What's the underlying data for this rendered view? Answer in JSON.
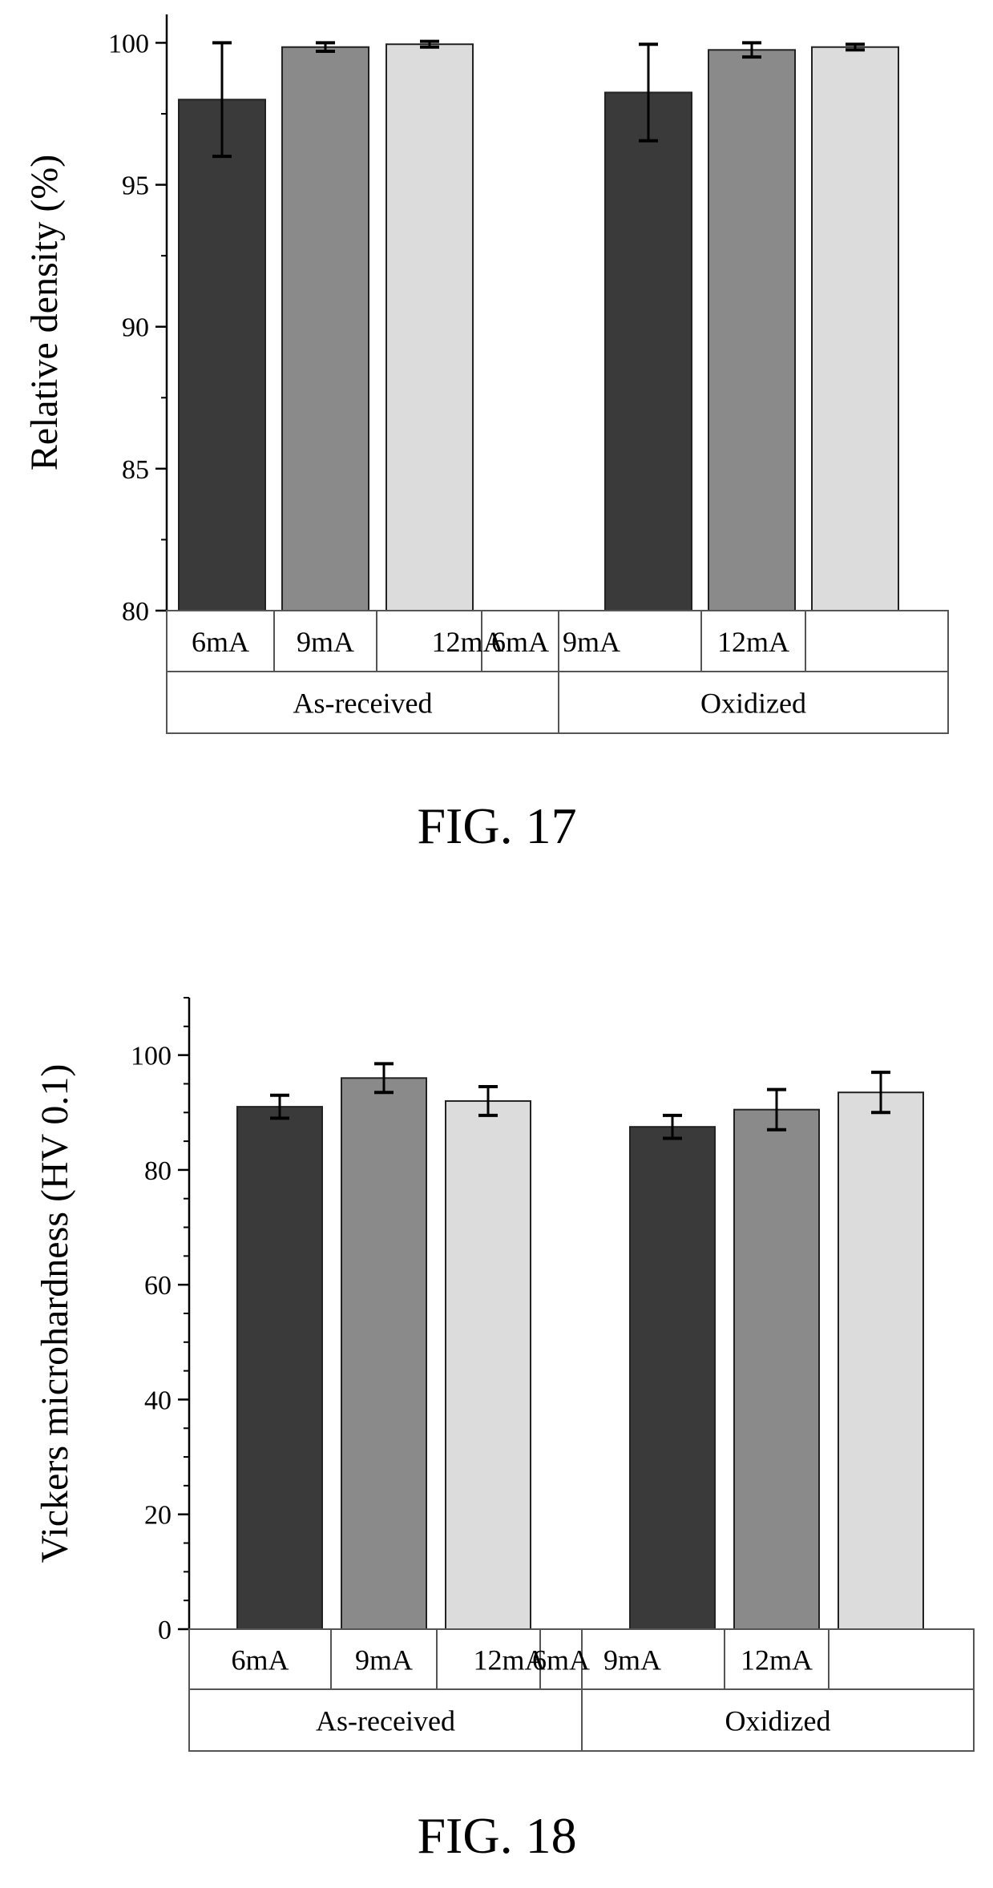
{
  "chart_data": [
    {
      "type": "bar",
      "figure_label": "FIG. 17",
      "ylabel": "Relative density (%)",
      "ylim": [
        80,
        101
      ],
      "yticks": [
        80,
        85,
        90,
        95,
        100
      ],
      "groups": [
        "As-received",
        "Oxidized"
      ],
      "categories": [
        "6mA",
        "9mA",
        "12mA"
      ],
      "series": [
        {
          "group": "As-received",
          "values": [
            98.0,
            99.85,
            99.95
          ],
          "errors": [
            2.0,
            0.15,
            0.1
          ],
          "colors": [
            "#3a3a3a",
            "#8a8a8a",
            "#dcdcdc"
          ]
        },
        {
          "group": "Oxidized",
          "values": [
            98.25,
            99.75,
            99.85
          ],
          "errors": [
            1.7,
            0.25,
            0.1
          ],
          "colors": [
            "#3a3a3a",
            "#8a8a8a",
            "#dcdcdc"
          ]
        }
      ]
    },
    {
      "type": "bar",
      "figure_label": "FIG. 18",
      "ylabel": "Vickers microhardness (HV 0.1)",
      "ylim": [
        0,
        110
      ],
      "yticks": [
        0,
        20,
        40,
        60,
        80,
        100
      ],
      "groups": [
        "As-received",
        "Oxidized"
      ],
      "categories": [
        "6mA",
        "9mA",
        "12mA"
      ],
      "series": [
        {
          "group": "As-received",
          "values": [
            91,
            96,
            92
          ],
          "errors": [
            2,
            2.5,
            2.5
          ],
          "colors": [
            "#3a3a3a",
            "#8a8a8a",
            "#dcdcdc"
          ]
        },
        {
          "group": "Oxidized",
          "values": [
            87.5,
            90.5,
            93.5
          ],
          "errors": [
            2,
            3.5,
            3.5
          ],
          "colors": [
            "#3a3a3a",
            "#8a8a8a",
            "#dcdcdc"
          ]
        }
      ]
    }
  ]
}
